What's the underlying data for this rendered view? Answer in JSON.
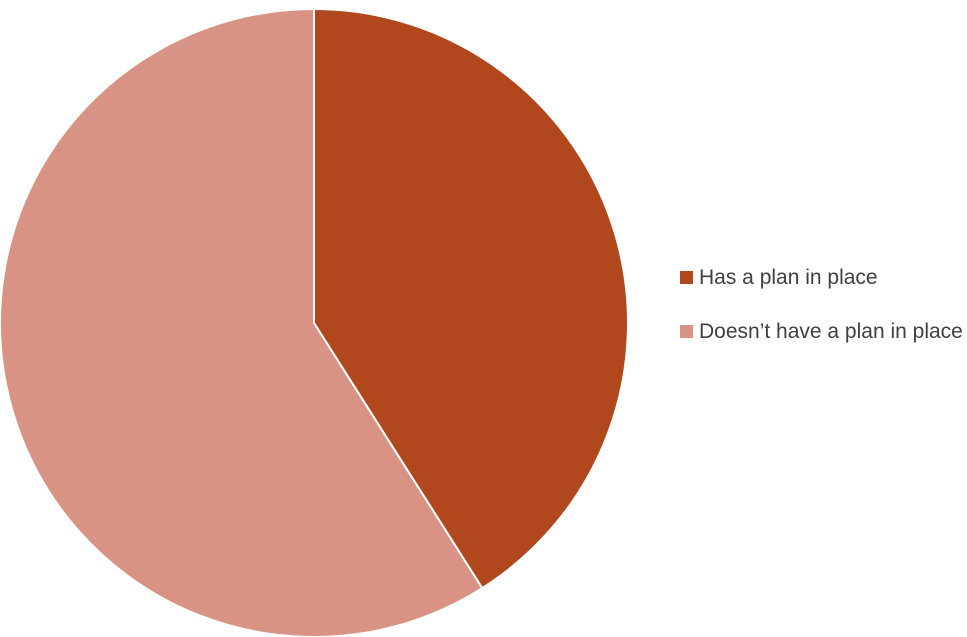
{
  "chart_data": {
    "type": "pie",
    "title": "",
    "legend_position": "right",
    "slices": [
      {
        "label": "Has a plan in place",
        "value": 41,
        "color": "#b0471d"
      },
      {
        "label": "Doesn’t have a plan in place",
        "value": 59,
        "color": "#d99385"
      }
    ]
  }
}
